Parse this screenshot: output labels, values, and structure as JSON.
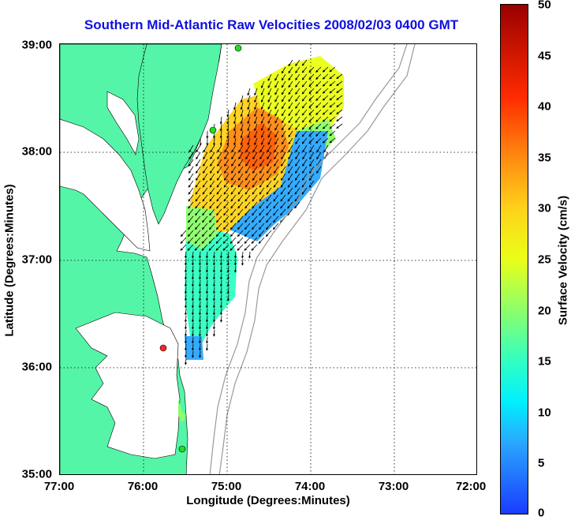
{
  "title": "Southern Mid-Atlantic Raw Velocities 2008/02/03 0400 GMT",
  "x_axis": {
    "label": "Longitude (Degrees:Minutes)",
    "ticks": [
      "77:00",
      "76:00",
      "75:00",
      "74:00",
      "73:00",
      "72:00"
    ]
  },
  "y_axis": {
    "label": "Latitude (Degrees:Minutes)",
    "ticks": [
      "39:00",
      "38:00",
      "37:00",
      "36:00",
      "35:00"
    ]
  },
  "colorbar": {
    "label": "Surface Velocity (cm/s)",
    "ticks": [
      "50",
      "45",
      "40",
      "35",
      "30",
      "25",
      "20",
      "15",
      "10",
      "5",
      "0"
    ],
    "range": [
      0,
      50
    ],
    "colormap": "jet"
  },
  "map": {
    "land_color": "#55f5a8",
    "water_color": "#ffffff",
    "grid": "dotted",
    "stations": [
      {
        "color": "#22dd22"
      },
      {
        "color": "#22dd22"
      },
      {
        "color": "#ff2222"
      },
      {
        "color": "#22dd22"
      }
    ]
  }
}
